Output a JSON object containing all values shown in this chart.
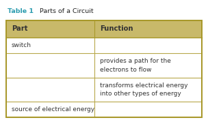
{
  "title_label": "Table 1",
  "title_rest": "  Parts of a Circuit",
  "title_color": "#2e9db0",
  "title_rest_color": "#222222",
  "header_bg": "#c8b96a",
  "header_border": "#a8982a",
  "row_bg": "#ffffff",
  "row_border": "#b8a84a",
  "outer_border": "#a8982a",
  "header": [
    "Part",
    "Function"
  ],
  "rows": [
    [
      "switch",
      ""
    ],
    [
      "",
      "provides a path for the\nelectrons to flow"
    ],
    [
      "",
      "transforms electrical energy\ninto other types of energy"
    ],
    [
      "source of electrical energy",
      ""
    ]
  ],
  "col_split": 0.455,
  "title_fontsize": 6.8,
  "header_fontsize": 7.2,
  "cell_fontsize": 6.5,
  "text_color": "#333333",
  "fig_bg": "#ffffff",
  "fig_w": 3.04,
  "fig_h": 1.76,
  "dpi": 100
}
